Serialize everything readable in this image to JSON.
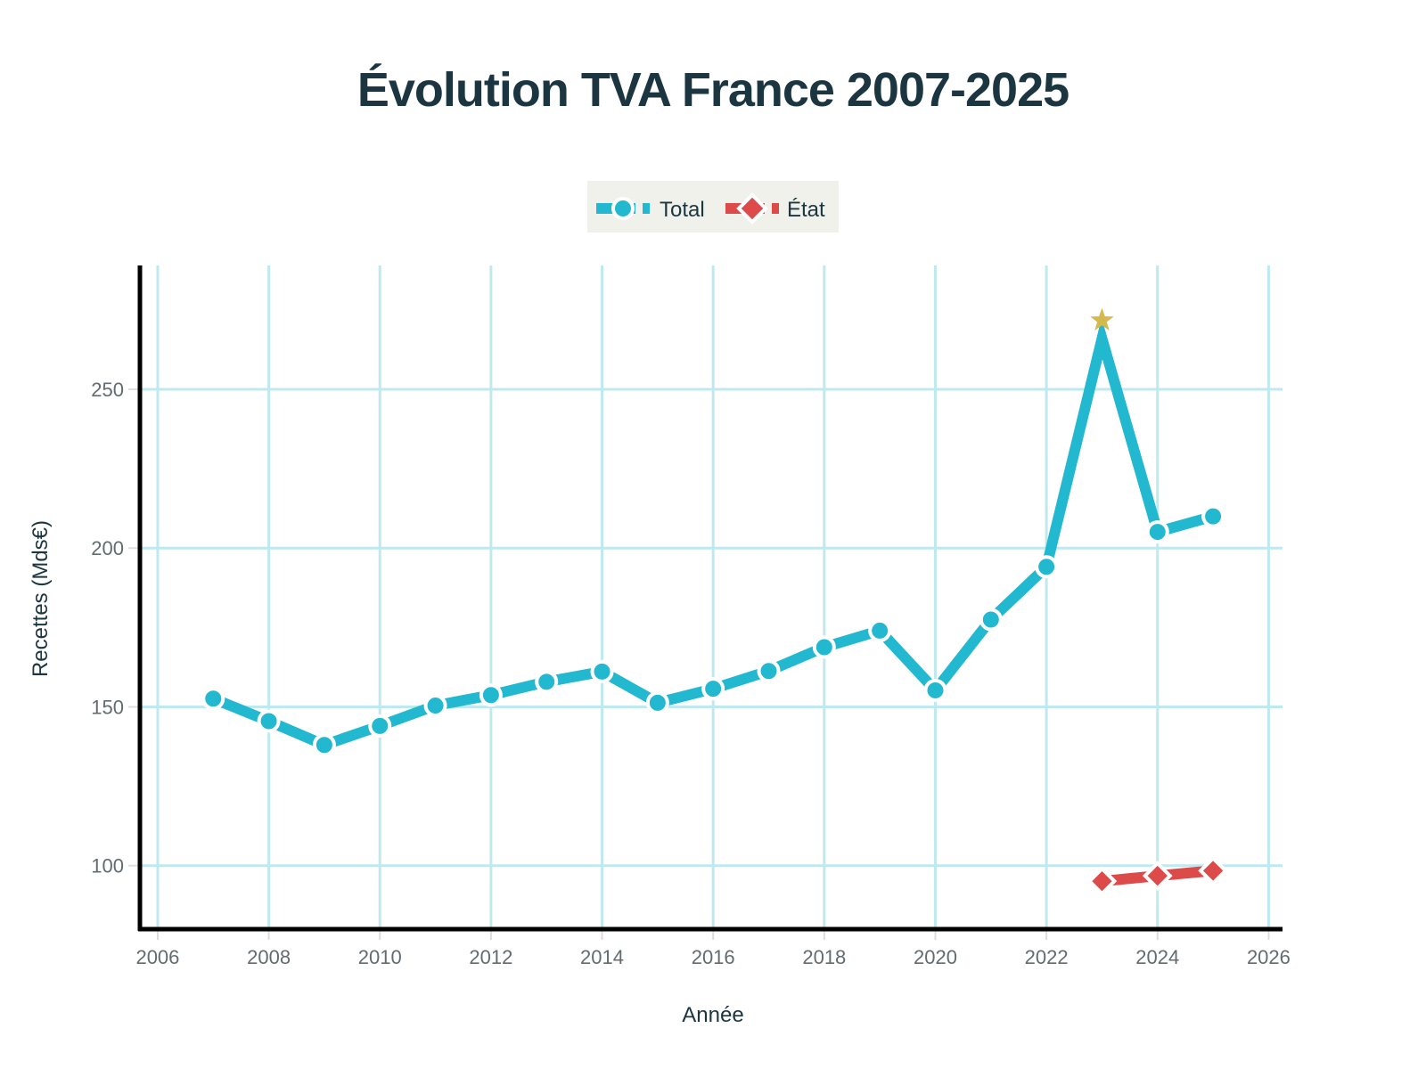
{
  "chart_data": {
    "type": "line",
    "title": "Évolution TVA France 2007-2025",
    "xlabel": "Année",
    "ylabel": "Recettes (Mds€)",
    "xlim": [
      2005.68,
      2026.25
    ],
    "ylim": [
      80,
      289
    ],
    "x_ticks": [
      2006,
      2008,
      2010,
      2012,
      2014,
      2016,
      2018,
      2020,
      2022,
      2024,
      2026
    ],
    "x_tick_labels": [
      "2006",
      "2008",
      "2010",
      "2012",
      "2014",
      "2016",
      "2018",
      "2020",
      "2022",
      "2024",
      "2026"
    ],
    "y_ticks": [
      100,
      150,
      200,
      250
    ],
    "y_tick_labels": [
      "100",
      "150",
      "200",
      "250"
    ],
    "grid": true,
    "legend_position": "top-center",
    "series": [
      {
        "name": "Total",
        "color": "#22b8cf",
        "marker": "circle",
        "x": [
          2007,
          2008,
          2009,
          2010,
          2011,
          2012,
          2013,
          2014,
          2015,
          2016,
          2017,
          2018,
          2019,
          2020,
          2021,
          2022,
          2023,
          2024,
          2025
        ],
        "values": [
          152.6,
          145.5,
          138,
          144,
          150.4,
          153.7,
          157.9,
          161.1,
          151.3,
          155.7,
          161.3,
          168.8,
          174,
          155.2,
          177.5,
          194.1,
          266,
          205.1,
          210
        ],
        "hidden_markers": [
          2023
        ]
      },
      {
        "name": "État",
        "color": "#dc4a4a",
        "marker": "diamond",
        "x": [
          2023,
          2024,
          2025
        ],
        "values": [
          95.1,
          96.8,
          98.4
        ]
      }
    ],
    "annotations": [
      {
        "type": "star",
        "x": 2023,
        "y": 271.7,
        "color": "#d4b94e"
      }
    ]
  },
  "colors": {
    "grid": "#bfe9f0",
    "axis": "#000000",
    "legend_bg": "#f1f1ec",
    "title": "#1b3640",
    "tick": "#626c70"
  }
}
